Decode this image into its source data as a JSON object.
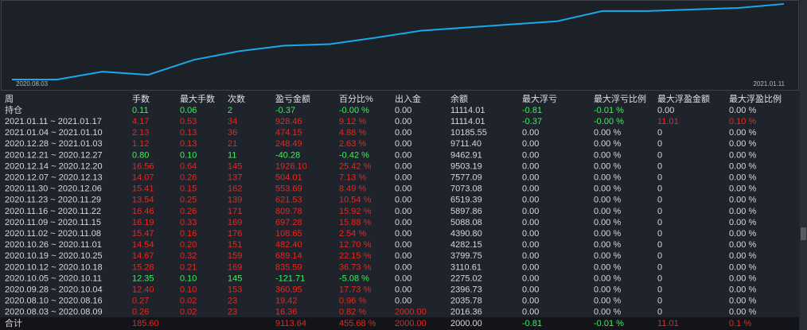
{
  "chart_data": {
    "type": "line",
    "x_start_label": "2020.08.03",
    "x_end_label": "2021.01.11",
    "color": "#1aa7ec",
    "ylim": [
      2000,
      11500
    ],
    "values": [
      2000,
      2000,
      2970,
      2580,
      4420,
      5490,
      6170,
      6360,
      7140,
      8010,
      8400,
      8790,
      9170,
      10430,
      10430,
      10630,
      10820,
      11310
    ]
  },
  "table": {
    "header": [
      "周",
      "手数",
      "最大手数",
      "次数",
      "盈亏金额",
      "百分比%",
      "出入金",
      "余额",
      "最大浮亏",
      "最大浮亏比例",
      "最大浮盈金额",
      "最大浮盈比例"
    ],
    "rows": [
      {
        "cells": [
          "持仓",
          "0.11",
          "0.06",
          "2",
          "-0.37",
          "-0.00 %",
          "0.00",
          "11114.01",
          "-0.81",
          "-0.01 %",
          "0.00",
          "0.00 %"
        ],
        "colors": [
          "#d8d8d8",
          "#3cf05a",
          "#3cf05a",
          "#3cf05a",
          "#3cf05a",
          "#3cf05a",
          "#d8d8d8",
          "#d8d8d8",
          "#3cf05a",
          "#3cf05a",
          "#d8d8d8",
          "#d8d8d8"
        ]
      },
      {
        "cells": [
          "2021.01.11 ~ 2021.01.17",
          "4.17",
          "0.53",
          "34",
          "928.46",
          "9.12 %",
          "0.00",
          "11114.01",
          "-0.37",
          "-0.00 %",
          "11.01",
          "0.10 %"
        ],
        "colors": [
          "#d8d8d8",
          "#e8281e",
          "#e8281e",
          "#e8281e",
          "#e8281e",
          "#e8281e",
          "#d8d8d8",
          "#d8d8d8",
          "#3cf05a",
          "#3cf05a",
          "#e8281e",
          "#e8281e"
        ]
      },
      {
        "cells": [
          "2021.01.04 ~ 2021.01.10",
          "2.13",
          "0.13",
          "36",
          "474.15",
          "4.88 %",
          "0.00",
          "10185.55",
          "0.00",
          "0.00 %",
          "0",
          "0.00 %"
        ],
        "colors": [
          "#d8d8d8",
          "#e8281e",
          "#e8281e",
          "#e8281e",
          "#e8281e",
          "#e8281e",
          "#d8d8d8",
          "#d8d8d8",
          "#d8d8d8",
          "#d8d8d8",
          "#d8d8d8",
          "#d8d8d8"
        ]
      },
      {
        "cells": [
          "2020.12.28 ~ 2021.01.03",
          "1.12",
          "0.13",
          "21",
          "248.49",
          "2.63 %",
          "0.00",
          "9711.40",
          "0.00",
          "0.00 %",
          "0",
          "0.00 %"
        ],
        "colors": [
          "#d8d8d8",
          "#e8281e",
          "#e8281e",
          "#e8281e",
          "#e8281e",
          "#e8281e",
          "#d8d8d8",
          "#d8d8d8",
          "#d8d8d8",
          "#d8d8d8",
          "#d8d8d8",
          "#d8d8d8"
        ]
      },
      {
        "cells": [
          "2020.12.21 ~ 2020.12.27",
          "0.80",
          "0.10",
          "11",
          "-40.28",
          "-0.42 %",
          "0.00",
          "9462.91",
          "0.00",
          "0.00 %",
          "0",
          "0.00 %"
        ],
        "colors": [
          "#d8d8d8",
          "#3cf05a",
          "#3cf05a",
          "#3cf05a",
          "#3cf05a",
          "#3cf05a",
          "#d8d8d8",
          "#d8d8d8",
          "#d8d8d8",
          "#d8d8d8",
          "#d8d8d8",
          "#d8d8d8"
        ]
      },
      {
        "cells": [
          "2020.12.14 ~ 2020.12.20",
          "16.56",
          "0.64",
          "145",
          "1926.10",
          "25.42 %",
          "0.00",
          "9503.19",
          "0.00",
          "0.00 %",
          "0",
          "0.00 %"
        ],
        "colors": [
          "#d8d8d8",
          "#e8281e",
          "#e8281e",
          "#e8281e",
          "#e8281e",
          "#e8281e",
          "#d8d8d8",
          "#d8d8d8",
          "#d8d8d8",
          "#d8d8d8",
          "#d8d8d8",
          "#d8d8d8"
        ]
      },
      {
        "cells": [
          "2020.12.07 ~ 2020.12.13",
          "14.07",
          "0.26",
          "137",
          "504.01",
          "7.13 %",
          "0.00",
          "7577.09",
          "0.00",
          "0.00 %",
          "0",
          "0.00 %"
        ],
        "colors": [
          "#d8d8d8",
          "#e8281e",
          "#e8281e",
          "#e8281e",
          "#e8281e",
          "#e8281e",
          "#d8d8d8",
          "#d8d8d8",
          "#d8d8d8",
          "#d8d8d8",
          "#d8d8d8",
          "#d8d8d8"
        ]
      },
      {
        "cells": [
          "2020.11.30 ~ 2020.12.06",
          "15.41",
          "0.15",
          "162",
          "553.69",
          "8.49 %",
          "0.00",
          "7073.08",
          "0.00",
          "0.00 %",
          "0",
          "0.00 %"
        ],
        "colors": [
          "#d8d8d8",
          "#e8281e",
          "#e8281e",
          "#e8281e",
          "#e8281e",
          "#e8281e",
          "#d8d8d8",
          "#d8d8d8",
          "#d8d8d8",
          "#d8d8d8",
          "#d8d8d8",
          "#d8d8d8"
        ]
      },
      {
        "cells": [
          "2020.11.23 ~ 2020.11.29",
          "13.54",
          "0.25",
          "139",
          "621.53",
          "10.54 %",
          "0.00",
          "6519.39",
          "0.00",
          "0.00 %",
          "0",
          "0.00 %"
        ],
        "colors": [
          "#d8d8d8",
          "#e8281e",
          "#e8281e",
          "#e8281e",
          "#e8281e",
          "#e8281e",
          "#d8d8d8",
          "#d8d8d8",
          "#d8d8d8",
          "#d8d8d8",
          "#d8d8d8",
          "#d8d8d8"
        ]
      },
      {
        "cells": [
          "2020.11.16 ~ 2020.11.22",
          "16.46",
          "0.26",
          "171",
          "809.78",
          "15.92 %",
          "0.00",
          "5897.86",
          "0.00",
          "0.00 %",
          "0",
          "0.00 %"
        ],
        "colors": [
          "#d8d8d8",
          "#e8281e",
          "#e8281e",
          "#e8281e",
          "#e8281e",
          "#e8281e",
          "#d8d8d8",
          "#d8d8d8",
          "#d8d8d8",
          "#d8d8d8",
          "#d8d8d8",
          "#d8d8d8"
        ]
      },
      {
        "cells": [
          "2020.11.09 ~ 2020.11.15",
          "16.19",
          "0.33",
          "169",
          "697.28",
          "15.88 %",
          "0.00",
          "5088.08",
          "0.00",
          "0.00 %",
          "0",
          "0.00 %"
        ],
        "colors": [
          "#d8d8d8",
          "#e8281e",
          "#e8281e",
          "#e8281e",
          "#e8281e",
          "#e8281e",
          "#d8d8d8",
          "#d8d8d8",
          "#d8d8d8",
          "#d8d8d8",
          "#d8d8d8",
          "#d8d8d8"
        ]
      },
      {
        "cells": [
          "2020.11.02 ~ 2020.11.08",
          "15.47",
          "0.16",
          "176",
          "108.65",
          "2.54 %",
          "0.00",
          "4390.80",
          "0.00",
          "0.00 %",
          "0",
          "0.00 %"
        ],
        "colors": [
          "#d8d8d8",
          "#e8281e",
          "#e8281e",
          "#e8281e",
          "#e8281e",
          "#e8281e",
          "#d8d8d8",
          "#d8d8d8",
          "#d8d8d8",
          "#d8d8d8",
          "#d8d8d8",
          "#d8d8d8"
        ]
      },
      {
        "cells": [
          "2020.10.26 ~ 2020.11.01",
          "14.54",
          "0.20",
          "151",
          "482.40",
          "12.70 %",
          "0.00",
          "4282.15",
          "0.00",
          "0.00 %",
          "0",
          "0.00 %"
        ],
        "colors": [
          "#d8d8d8",
          "#e8281e",
          "#e8281e",
          "#e8281e",
          "#e8281e",
          "#e8281e",
          "#d8d8d8",
          "#d8d8d8",
          "#d8d8d8",
          "#d8d8d8",
          "#d8d8d8",
          "#d8d8d8"
        ]
      },
      {
        "cells": [
          "2020.10.19 ~ 2020.10.25",
          "14.67",
          "0.32",
          "159",
          "689.14",
          "22.15 %",
          "0.00",
          "3799.75",
          "0.00",
          "0.00 %",
          "0",
          "0.00 %"
        ],
        "colors": [
          "#d8d8d8",
          "#e8281e",
          "#e8281e",
          "#e8281e",
          "#e8281e",
          "#e8281e",
          "#d8d8d8",
          "#d8d8d8",
          "#d8d8d8",
          "#d8d8d8",
          "#d8d8d8",
          "#d8d8d8"
        ]
      },
      {
        "cells": [
          "2020.10.12 ~ 2020.10.18",
          "15.28",
          "0.21",
          "169",
          "835.59",
          "36.73 %",
          "0.00",
          "3110.61",
          "0.00",
          "0.00 %",
          "0",
          "0.00 %"
        ],
        "colors": [
          "#d8d8d8",
          "#e8281e",
          "#e8281e",
          "#e8281e",
          "#e8281e",
          "#e8281e",
          "#d8d8d8",
          "#d8d8d8",
          "#d8d8d8",
          "#d8d8d8",
          "#d8d8d8",
          "#d8d8d8"
        ]
      },
      {
        "cells": [
          "2020.10.05 ~ 2020.10.11",
          "12.35",
          "0.10",
          "145",
          "-121.71",
          "-5.08 %",
          "0.00",
          "2275.02",
          "0.00",
          "0.00 %",
          "0",
          "0.00 %"
        ],
        "colors": [
          "#d8d8d8",
          "#3cf05a",
          "#3cf05a",
          "#3cf05a",
          "#3cf05a",
          "#3cf05a",
          "#d8d8d8",
          "#d8d8d8",
          "#d8d8d8",
          "#d8d8d8",
          "#d8d8d8",
          "#d8d8d8"
        ]
      },
      {
        "cells": [
          "2020.09.28 ~ 2020.10.04",
          "12.40",
          "0.10",
          "153",
          "360.95",
          "17.73 %",
          "0.00",
          "2396.73",
          "0.00",
          "0.00 %",
          "0",
          "0.00 %"
        ],
        "colors": [
          "#d8d8d8",
          "#e8281e",
          "#e8281e",
          "#e8281e",
          "#e8281e",
          "#e8281e",
          "#d8d8d8",
          "#d8d8d8",
          "#d8d8d8",
          "#d8d8d8",
          "#d8d8d8",
          "#d8d8d8"
        ]
      },
      {
        "cells": [
          "2020.08.10 ~ 2020.08.16",
          "0.27",
          "0.02",
          "23",
          "19.42",
          "0.96 %",
          "0.00",
          "2035.78",
          "0.00",
          "0.00 %",
          "0",
          "0.00 %"
        ],
        "colors": [
          "#d8d8d8",
          "#e8281e",
          "#e8281e",
          "#e8281e",
          "#e8281e",
          "#e8281e",
          "#d8d8d8",
          "#d8d8d8",
          "#d8d8d8",
          "#d8d8d8",
          "#d8d8d8",
          "#d8d8d8"
        ]
      },
      {
        "cells": [
          "2020.08.03 ~ 2020.08.09",
          "0.26",
          "0.02",
          "23",
          "16.36",
          "0.82 %",
          "2000.00",
          "2016.36",
          "0.00",
          "0.00 %",
          "0",
          "0.00 %"
        ],
        "colors": [
          "#d8d8d8",
          "#e8281e",
          "#e8281e",
          "#e8281e",
          "#e8281e",
          "#e8281e",
          "#e8281e",
          "#d8d8d8",
          "#d8d8d8",
          "#d8d8d8",
          "#d8d8d8",
          "#d8d8d8"
        ]
      }
    ],
    "total": {
      "cells": [
        "合计",
        "185.60",
        null,
        null,
        "9113.64",
        "455.68 %",
        "2000.00",
        "2000.00",
        "-0.81",
        "-0.01 %",
        "11.01",
        "0.1 %"
      ],
      "colors": [
        "#d8d8d8",
        "#e8281e",
        "#d8d8d8",
        "#d8d8d8",
        "#e8281e",
        "#e8281e",
        "#e8281e",
        "#d8d8d8",
        "#3cf05a",
        "#3cf05a",
        "#e8281e",
        "#e8281e"
      ]
    }
  }
}
